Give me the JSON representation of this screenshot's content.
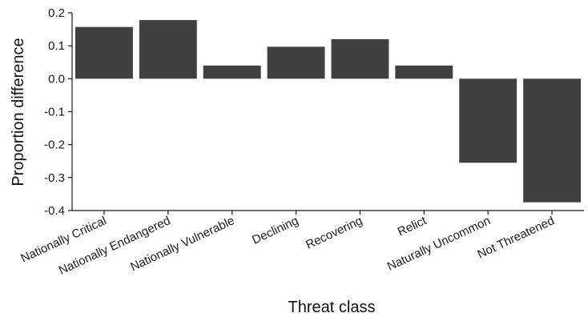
{
  "chart_data": {
    "type": "bar",
    "title": "",
    "xlabel": "Threat class",
    "ylabel": "Proportion difference",
    "categories": [
      "Nationally Critical",
      "Nationally Endangered",
      "Nationally Vulnerable",
      "Declining",
      "Recovering",
      "Relict",
      "Naturally Uncommon",
      "Not Threatened"
    ],
    "values": [
      0.157,
      0.178,
      0.04,
      0.097,
      0.12,
      0.04,
      -0.255,
      -0.375
    ],
    "ylim": [
      -0.4,
      0.2
    ],
    "yticks": [
      -0.4,
      -0.3,
      -0.2,
      -0.1,
      0.0,
      0.1,
      0.2
    ],
    "ytick_labels": [
      "-0.4",
      "-0.3",
      "-0.2",
      "-0.1",
      "0.0",
      "0.1",
      "0.2"
    ],
    "grid": false,
    "legend": "none",
    "bar_color": "#404040",
    "axis_color": "#1a1a1a"
  }
}
